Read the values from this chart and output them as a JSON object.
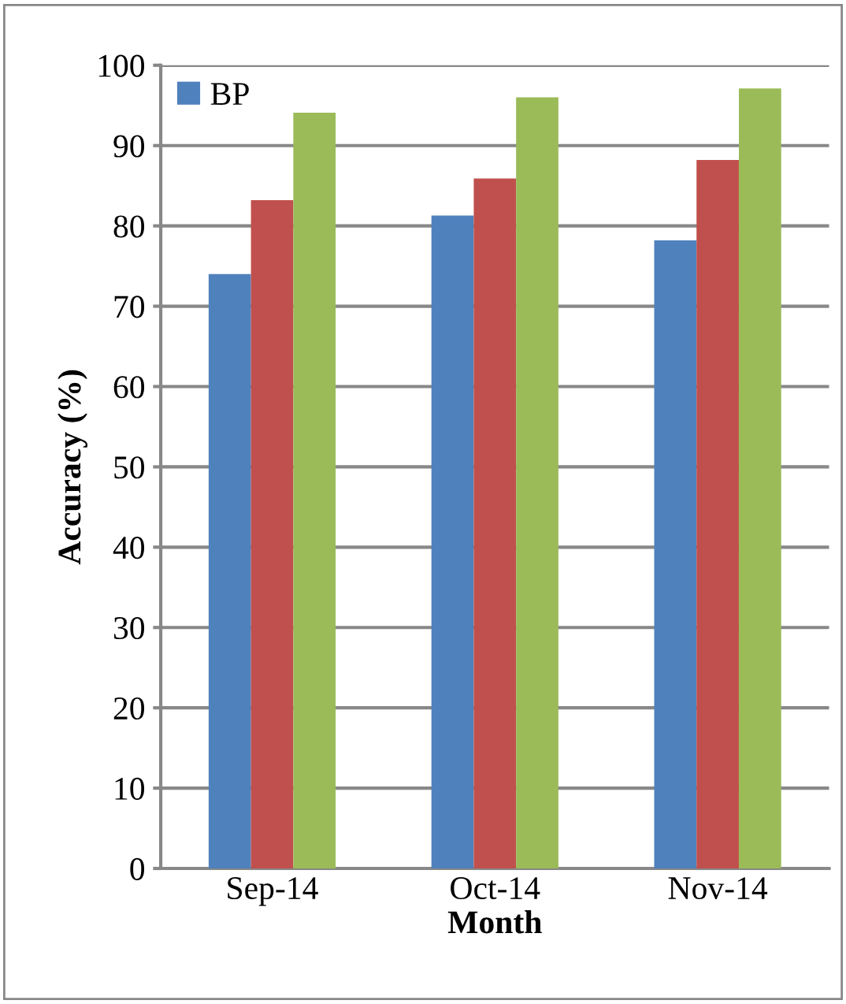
{
  "chart_data": {
    "type": "bar",
    "xlabel": "Month",
    "ylabel": "Accuracy (%)",
    "categories": [
      "Sep-14",
      "Oct-14",
      "Nov-14"
    ],
    "series": [
      {
        "name": "BP",
        "color": "#4f81bd",
        "values": [
          74,
          81.3,
          78.2
        ]
      },
      {
        "color": "#c0504d",
        "values": [
          83.2,
          85.9,
          88.2
        ]
      },
      {
        "color": "#9bbb59",
        "values": [
          94.1,
          96.0,
          97.1
        ]
      }
    ],
    "ylim": [
      0,
      100
    ],
    "yticks": [
      0,
      10,
      20,
      30,
      40,
      50,
      60,
      70,
      80,
      90,
      100
    ],
    "grid": "y",
    "legend": "top left"
  }
}
